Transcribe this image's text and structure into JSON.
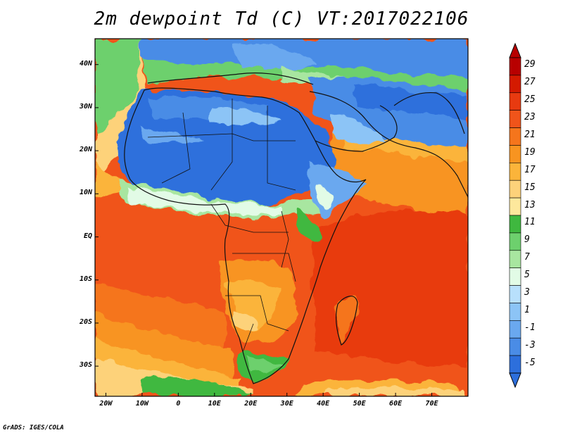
{
  "title": "2m dewpoint Td (C) VT:2017022106",
  "credit": "GrADS: IGES/COLA",
  "map": {
    "lon_range": [
      -23,
      80
    ],
    "lat_range": [
      -37,
      46
    ],
    "lat_labels": [
      {
        "lat": 40,
        "text": "40N"
      },
      {
        "lat": 30,
        "text": "30N"
      },
      {
        "lat": 20,
        "text": "20N"
      },
      {
        "lat": 10,
        "text": "10N"
      },
      {
        "lat": 0,
        "text": "EQ"
      },
      {
        "lat": -10,
        "text": "10S"
      },
      {
        "lat": -20,
        "text": "20S"
      },
      {
        "lat": -30,
        "text": "30S"
      }
    ],
    "lon_labels": [
      {
        "lon": -20,
        "text": "20W"
      },
      {
        "lon": -10,
        "text": "10W"
      },
      {
        "lon": 0,
        "text": "0"
      },
      {
        "lon": 10,
        "text": "10E"
      },
      {
        "lon": 20,
        "text": "20E"
      },
      {
        "lon": 30,
        "text": "30E"
      },
      {
        "lon": 40,
        "text": "40E"
      },
      {
        "lon": 50,
        "text": "50E"
      },
      {
        "lon": 60,
        "text": "60E"
      },
      {
        "lon": 70,
        "text": "70E"
      }
    ]
  },
  "colorbar": {
    "levels": [
      {
        "label": "29",
        "color": "#b80000"
      },
      {
        "label": "27",
        "color": "#d41a00"
      },
      {
        "label": "25",
        "color": "#e83a10"
      },
      {
        "label": "23",
        "color": "#f0541a"
      },
      {
        "label": "21",
        "color": "#f5751c"
      },
      {
        "label": "19",
        "color": "#f89420"
      },
      {
        "label": "17",
        "color": "#fbb43a"
      },
      {
        "label": "15",
        "color": "#fdd27a"
      },
      {
        "label": "13",
        "color": "#fde89c"
      },
      {
        "label": "11",
        "color": "#3fb83f"
      },
      {
        "label": "9",
        "color": "#6dd06d"
      },
      {
        "label": "7",
        "color": "#a8e6a0"
      },
      {
        "label": "5",
        "color": "#e2fbe6"
      },
      {
        "label": "3",
        "color": "#b8e0fc"
      },
      {
        "label": "1",
        "color": "#8cc4f6"
      },
      {
        "label": "-1",
        "color": "#6aa8ef"
      },
      {
        "label": "-3",
        "color": "#4a8ce6"
      },
      {
        "label": "-5",
        "color": "#2d6fdc"
      }
    ],
    "bottom_color": "#2d6fdc",
    "top_color": "#b80000"
  }
}
